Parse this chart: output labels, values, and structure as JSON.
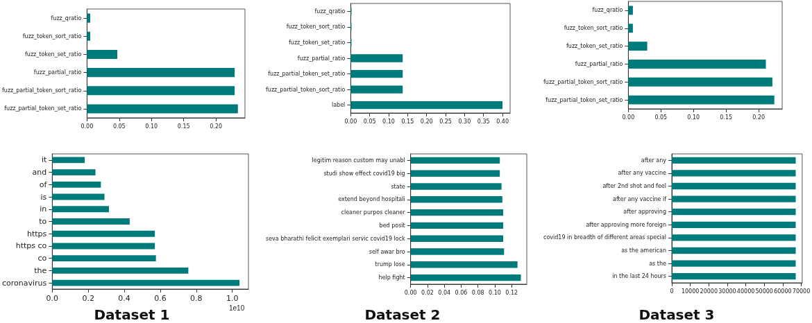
{
  "chart_data": [
    {
      "type": "bar",
      "orientation": "horizontal",
      "grid": false,
      "color": "#007b7b",
      "categories": [
        "fuzz_qratio",
        "fuzz_token_sort_ratio",
        "fuzz_token_set_ratio",
        "fuzz_partial_ratio",
        "fuzz_partial_token_sort_ratio",
        "fuzz_partial_token_set_ratio"
      ],
      "values": [
        0.005,
        0.005,
        0.047,
        0.229,
        0.229,
        0.234
      ],
      "xlim": [
        0,
        0.245
      ],
      "xticks": [
        {
          "value": 0,
          "label": "0.00"
        },
        0.05,
        {
          "value": 0.1,
          "label": "0.10"
        },
        0.15,
        {
          "value": 0.2,
          "label": "0.20"
        }
      ]
    },
    {
      "type": "bar",
      "orientation": "horizontal",
      "grid": false,
      "color": "#007b7b",
      "categories": [
        "fuzz_qratio",
        "fuzz_token_sort_ratio",
        "fuzz_token_set_ratio",
        "fuzz_partial_ratio",
        "fuzz_partial_token_set_ratio",
        "fuzz_partial_token_sort_ratio",
        "label"
      ],
      "values": [
        0.002,
        0.002,
        0.002,
        0.137,
        0.137,
        0.137,
        0.4
      ],
      "xlim": [
        0,
        0.42
      ],
      "xticks": [
        {
          "value": 0,
          "label": "0.00"
        },
        0.05,
        {
          "value": 0.1,
          "label": "0.10"
        },
        0.15,
        {
          "value": 0.2,
          "label": "0.20"
        },
        0.25,
        {
          "value": 0.3,
          "label": "0.30"
        },
        0.35,
        {
          "value": 0.4,
          "label": "0.40"
        }
      ]
    },
    {
      "type": "bar",
      "orientation": "horizontal",
      "grid": false,
      "color": "#007b7b",
      "categories": [
        "fuzz_qratio",
        "fuzz_token_sort_ratio",
        "fuzz_token_set_ratio",
        "fuzz_partial_ratio",
        "fuzz_partial_token_sort_ratio",
        "fuzz_partial_token_set_ratio"
      ],
      "values": [
        0.007,
        0.007,
        0.029,
        0.211,
        0.221,
        0.224
      ],
      "xlim": [
        0,
        0.236
      ],
      "xticks": [
        {
          "value": 0,
          "label": "0.00"
        },
        0.05,
        {
          "value": 0.1,
          "label": "0.10"
        },
        0.15,
        {
          "value": 0.2,
          "label": "0.20"
        }
      ]
    },
    {
      "type": "bar",
      "orientation": "horizontal",
      "grid": false,
      "color": "#007b7b",
      "categories": [
        "it",
        "and",
        "of",
        "is",
        "in",
        "to",
        "https",
        "https co",
        "co",
        "the",
        "coronavirus"
      ],
      "values": [
        0.18,
        0.24,
        0.27,
        0.29,
        0.315,
        0.43,
        0.57,
        0.57,
        0.576,
        0.756,
        1.04
      ],
      "xlim": [
        0,
        1.09
      ],
      "xticks": [
        {
          "value": 0,
          "label": "0.0"
        },
        0.2,
        0.4,
        0.6,
        0.8,
        {
          "value": 1,
          "label": "1.0"
        }
      ],
      "xlabel": "1e10",
      "annotations": [
        "Dataset 1"
      ]
    },
    {
      "type": "bar",
      "orientation": "horizontal",
      "grid": false,
      "color": "#007b7b",
      "categories": [
        "legitim reason custom may unabl",
        "studi show effect covid19 big",
        "state",
        "extend beyond hospitali",
        "cleaner purpos cleaner",
        "bed posit",
        "seva bharathi felicit exemplari servic covid19 lock",
        "self awar bro",
        "trump lose",
        "help fight"
      ],
      "values": [
        0.106,
        0.106,
        0.108,
        0.109,
        0.11,
        0.11,
        0.11,
        0.111,
        0.127,
        0.131
      ],
      "xlim": [
        0,
        0.138
      ],
      "xticks": [
        {
          "value": 0,
          "label": "0.00"
        },
        0.02,
        0.04,
        0.06,
        0.08,
        {
          "value": 0.1,
          "label": "0.10"
        },
        0.12
      ],
      "annotations": [
        "Dataset 2"
      ]
    },
    {
      "type": "bar",
      "orientation": "horizontal",
      "grid": false,
      "color": "#007b7b",
      "categories": [
        "after any",
        "after any vaccine",
        "after 2nd shot and feel",
        "after any vaccine if",
        "after approving",
        "after approving more foreign",
        "covid19 in breadth of different areas special",
        "as the american",
        "as the",
        "in the last 24 hours"
      ],
      "values": [
        67000,
        67000,
        67000,
        67000,
        67000,
        67000,
        67000,
        67000,
        67000,
        67000
      ],
      "xlim": [
        0,
        70500
      ],
      "xticks": [
        0,
        10000,
        20000,
        30000,
        40000,
        50000,
        60000,
        70000
      ],
      "annotations": [
        "Dataset 3"
      ]
    }
  ]
}
